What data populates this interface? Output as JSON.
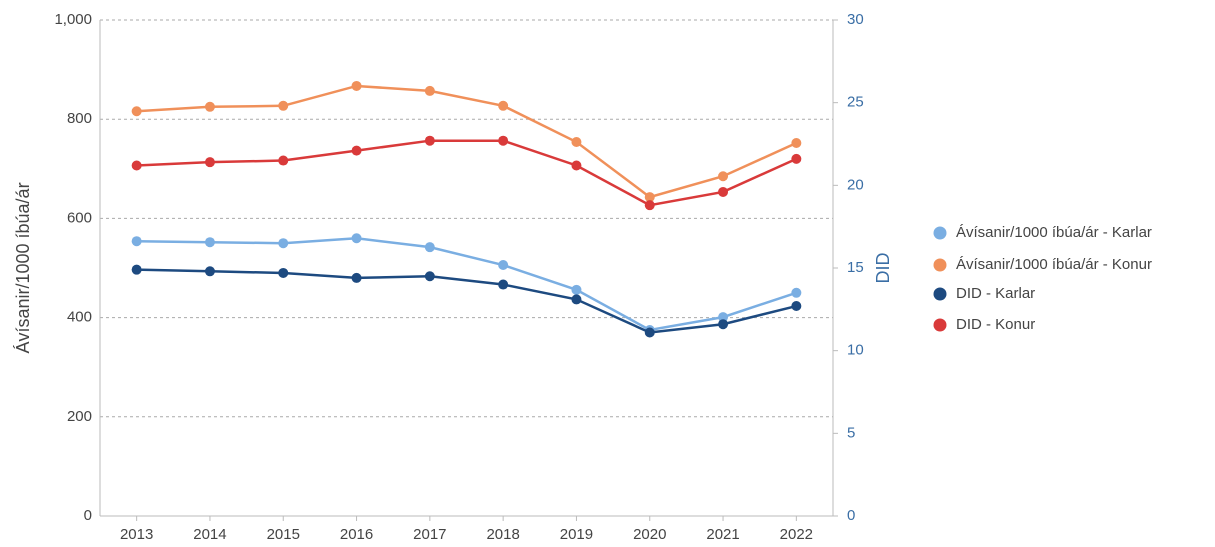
{
  "chart_data": {
    "type": "line",
    "categories": [
      "2013",
      "2014",
      "2015",
      "2016",
      "2017",
      "2018",
      "2019",
      "2020",
      "2021",
      "2022"
    ],
    "series": [
      {
        "name": "Ávísanir/1000 íbúa/ár - Karlar",
        "color": "#7aaee2",
        "values": [
          554,
          552,
          550,
          560,
          542,
          506,
          456,
          375,
          401,
          450
        ]
      },
      {
        "name": "Ávísanir/1000 íbúa/ár - Konur",
        "color": "#f0905a",
        "values": [
          816,
          825,
          827,
          867,
          857,
          827,
          754,
          643,
          685,
          752
        ]
      },
      {
        "name": "DID - Karlar",
        "color": "#1d4a80",
        "axis": "y2",
        "values": [
          14.9,
          14.8,
          14.7,
          14.4,
          14.5,
          14.0,
          13.1,
          11.1,
          11.6,
          12.7
        ]
      },
      {
        "name": "DID - Konur",
        "color": "#d93a3a",
        "axis": "y2",
        "values": [
          21.2,
          21.4,
          21.5,
          22.1,
          22.7,
          22.7,
          21.2,
          18.8,
          19.6,
          21.6
        ]
      }
    ],
    "ylabel": "Ávísanir/1000 íbúa/ár",
    "y2label": "DID",
    "ylim": [
      0,
      1000
    ],
    "yticks": [
      0,
      200,
      400,
      600,
      800,
      {
        "value": 1000,
        "label": "1,000"
      }
    ],
    "y2lim": [
      0,
      30
    ],
    "y2ticks": [
      0,
      5,
      10,
      15,
      20,
      25,
      30
    ],
    "grid": true,
    "legend": "right"
  }
}
